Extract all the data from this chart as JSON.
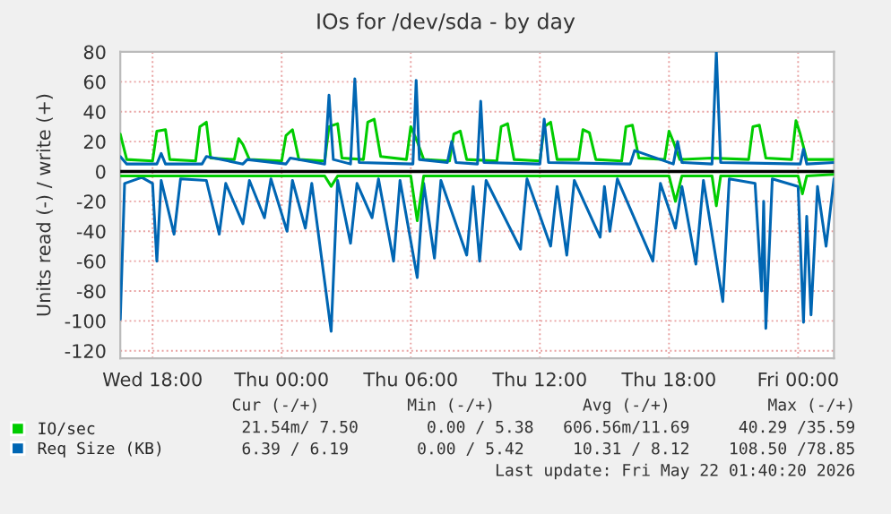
{
  "chart_data": {
    "type": "line",
    "title": "IOs for /dev/sda - by day",
    "ylabel": "Units read (-) / write (+)",
    "xlim": [
      "2026-05-20T16:30",
      "2026-05-22T01:40"
    ],
    "xticks": [
      {
        "value": "2026-05-20T18:00",
        "label": "Wed 18:00"
      },
      {
        "value": "2026-05-21T00:00",
        "label": "Thu 00:00"
      },
      {
        "value": "2026-05-21T06:00",
        "label": "Thu 06:00"
      },
      {
        "value": "2026-05-21T12:00",
        "label": "Thu 12:00"
      },
      {
        "value": "2026-05-21T18:00",
        "label": "Thu 18:00"
      },
      {
        "value": "2026-05-22T00:00",
        "label": "Fri 00:00"
      }
    ],
    "ylim": [
      -125,
      80
    ],
    "yticks": [
      -120,
      -100,
      -80,
      -60,
      -40,
      -20,
      0,
      20,
      40,
      60,
      80
    ],
    "grid": true,
    "legend": "bottom left",
    "line_style": "solid",
    "marker": "none",
    "ref_lines": [
      {
        "axis": "y",
        "value": 0,
        "color": "#000000"
      }
    ],
    "series": [
      {
        "name": "IO/sec",
        "color": "#00cc00",
        "x": [
          "2026-05-20T16:30",
          "2026-05-20T16:48",
          "2026-05-20T18:00",
          "2026-05-20T18:12",
          "2026-05-20T18:36",
          "2026-05-20T18:48",
          "2026-05-20T20:00",
          "2026-05-20T20:12",
          "2026-05-20T20:30",
          "2026-05-20T20:42",
          "2026-05-20T21:48",
          "2026-05-20T22:00",
          "2026-05-20T22:12",
          "2026-05-20T22:30",
          "2026-05-21T00:00",
          "2026-05-21T00:12",
          "2026-05-21T00:30",
          "2026-05-21T00:48",
          "2026-05-21T02:00",
          "2026-05-21T02:12",
          "2026-05-21T02:36",
          "2026-05-21T02:48",
          "2026-05-21T03:48",
          "2026-05-21T04:00",
          "2026-05-21T04:18",
          "2026-05-21T04:36",
          "2026-05-21T05:48",
          "2026-05-21T06:00",
          "2026-05-21T06:18",
          "2026-05-21T06:36",
          "2026-05-21T07:48",
          "2026-05-21T08:00",
          "2026-05-21T08:18",
          "2026-05-21T08:36",
          "2026-05-21T10:00",
          "2026-05-21T10:12",
          "2026-05-21T10:30",
          "2026-05-21T10:48",
          "2026-05-21T12:00",
          "2026-05-21T12:12",
          "2026-05-21T12:30",
          "2026-05-21T12:48",
          "2026-05-21T13:48",
          "2026-05-21T14:00",
          "2026-05-21T14:18",
          "2026-05-21T14:36",
          "2026-05-21T15:48",
          "2026-05-21T16:00",
          "2026-05-21T16:18",
          "2026-05-21T16:36",
          "2026-05-21T17:48",
          "2026-05-21T18:00",
          "2026-05-21T18:12",
          "2026-05-21T18:30",
          "2026-05-21T20:00",
          "2026-05-21T21:42",
          "2026-05-21T21:54",
          "2026-05-21T22:12",
          "2026-05-21T22:30",
          "2026-05-21T23:42",
          "2026-05-21T23:54",
          "2026-05-22T00:06",
          "2026-05-22T00:24",
          "2026-05-22T01:40"
        ],
        "values": [
          25,
          8,
          7,
          27,
          28,
          8,
          7,
          30,
          33,
          9,
          8,
          22,
          18,
          8,
          7,
          24,
          28,
          8,
          7,
          30,
          32,
          9,
          8,
          33,
          35,
          10,
          8,
          30,
          20,
          8,
          7,
          25,
          27,
          8,
          7,
          30,
          32,
          8,
          7,
          30,
          33,
          8,
          8,
          28,
          26,
          8,
          7,
          30,
          31,
          9,
          8,
          27,
          20,
          8,
          9,
          8,
          30,
          31,
          9,
          8,
          34,
          25,
          8,
          8
        ]
      },
      {
        "name": "Req Size (KB)",
        "color": "#0066b3",
        "x": [
          "2026-05-20T16:30",
          "2026-05-20T16:48",
          "2026-05-20T18:12",
          "2026-05-20T18:24",
          "2026-05-20T18:36",
          "2026-05-20T20:18",
          "2026-05-20T20:30",
          "2026-05-20T22:12",
          "2026-05-20T22:24",
          "2026-05-21T00:12",
          "2026-05-21T00:24",
          "2026-05-21T02:00",
          "2026-05-21T02:12",
          "2026-05-21T02:24",
          "2026-05-21T03:12",
          "2026-05-21T03:24",
          "2026-05-21T03:36",
          "2026-05-21T06:06",
          "2026-05-21T06:15",
          "2026-05-21T06:24",
          "2026-05-21T07:42",
          "2026-05-21T07:54",
          "2026-05-21T08:06",
          "2026-05-21T09:06",
          "2026-05-21T09:15",
          "2026-05-21T09:24",
          "2026-05-21T12:00",
          "2026-05-21T12:12",
          "2026-05-21T12:24",
          "2026-05-21T16:12",
          "2026-05-21T16:24",
          "2026-05-21T18:12",
          "2026-05-21T18:24",
          "2026-05-21T18:36",
          "2026-05-21T20:00",
          "2026-05-21T20:12",
          "2026-05-21T20:24",
          "2026-05-22T00:06",
          "2026-05-22T00:15",
          "2026-05-22T00:24",
          "2026-05-22T01:40"
        ],
        "values": [
          10,
          5,
          5,
          12,
          5,
          5,
          10,
          5,
          8,
          5,
          9,
          5,
          51,
          8,
          5,
          62,
          6,
          5,
          61,
          8,
          6,
          20,
          6,
          5,
          47,
          6,
          5,
          35,
          6,
          5,
          14,
          5,
          20,
          6,
          5,
          80,
          6,
          5,
          15,
          5,
          6
        ]
      },
      {
        "color": "#0066b3",
        "x": [
          "2026-05-20T16:30",
          "2026-05-20T16:42",
          "2026-05-20T17:30",
          "2026-05-20T18:00",
          "2026-05-20T18:12",
          "2026-05-20T18:24",
          "2026-05-20T19:00",
          "2026-05-20T19:18",
          "2026-05-20T20:30",
          "2026-05-20T21:06",
          "2026-05-20T21:24",
          "2026-05-20T22:12",
          "2026-05-20T22:30",
          "2026-05-20T23:12",
          "2026-05-20T23:30",
          "2026-05-21T00:15",
          "2026-05-21T00:30",
          "2026-05-21T01:06",
          "2026-05-21T01:24",
          "2026-05-21T02:18",
          "2026-05-21T02:36",
          "2026-05-21T03:12",
          "2026-05-21T03:30",
          "2026-05-21T04:12",
          "2026-05-21T04:30",
          "2026-05-21T05:12",
          "2026-05-21T05:30",
          "2026-05-21T06:18",
          "2026-05-21T06:36",
          "2026-05-21T07:06",
          "2026-05-21T07:24",
          "2026-05-21T08:36",
          "2026-05-21T08:54",
          "2026-05-21T09:12",
          "2026-05-21T09:30",
          "2026-05-21T11:06",
          "2026-05-21T11:24",
          "2026-05-21T12:30",
          "2026-05-21T12:48",
          "2026-05-21T13:15",
          "2026-05-21T13:36",
          "2026-05-21T14:48",
          "2026-05-21T15:00",
          "2026-05-21T15:15",
          "2026-05-21T15:36",
          "2026-05-21T17:15",
          "2026-05-21T17:36",
          "2026-05-21T18:18",
          "2026-05-21T18:36",
          "2026-05-21T19:15",
          "2026-05-21T19:36",
          "2026-05-21T20:30",
          "2026-05-21T20:48",
          "2026-05-21T22:00",
          "2026-05-21T22:18",
          "2026-05-21T22:24",
          "2026-05-21T22:30",
          "2026-05-21T22:48",
          "2026-05-22T00:00",
          "2026-05-22T00:15",
          "2026-05-22T00:24",
          "2026-05-22T00:36",
          "2026-05-22T00:54",
          "2026-05-22T01:18",
          "2026-05-22T01:40"
        ],
        "values": [
          -99,
          -8,
          -4,
          -8,
          -60,
          -6,
          -42,
          -5,
          -6,
          -42,
          -8,
          -35,
          -6,
          -31,
          -5,
          -40,
          -6,
          -38,
          -8,
          -107,
          -6,
          -48,
          -8,
          -31,
          -5,
          -60,
          -6,
          -71,
          -8,
          -58,
          -6,
          -56,
          -10,
          -60,
          -6,
          -52,
          -5,
          -50,
          -10,
          -56,
          -6,
          -44,
          -10,
          -40,
          -5,
          -60,
          -8,
          -38,
          -10,
          -62,
          -6,
          -87,
          -5,
          -8,
          -80,
          -20,
          -105,
          -5,
          -10,
          -101,
          -30,
          -96,
          -10,
          -50,
          -5
        ]
      },
      {
        "color": "#00cc00",
        "x": [
          "2026-05-20T16:30",
          "2026-05-21T02:00",
          "2026-05-21T02:18",
          "2026-05-21T02:36",
          "2026-05-21T06:00",
          "2026-05-21T06:18",
          "2026-05-21T06:36",
          "2026-05-21T18:00",
          "2026-05-21T18:18",
          "2026-05-21T18:36",
          "2026-05-21T20:00",
          "2026-05-21T20:12",
          "2026-05-21T20:24",
          "2026-05-22T00:00",
          "2026-05-22T00:12",
          "2026-05-22T00:24",
          "2026-05-22T01:40"
        ],
        "values": [
          -3,
          -3,
          -10,
          -3,
          -3,
          -33,
          -3,
          -3,
          -20,
          -3,
          -3,
          -23,
          -3,
          -3,
          -15,
          -3,
          -2
        ]
      }
    ],
    "annotations": [
      "Cur (-/+)         Min (-/+)         Avg (-/+)          Max (-/+)",
      "21.54m/ 7.50       0.00 / 5.38   606.56m/11.69     40.29 /35.59",
      "6.39 / 6.19       0.00 / 5.42     10.31 / 8.12    108.50 /78.85",
      "Last update: Fri May 22 01:40:20 2026"
    ]
  }
}
